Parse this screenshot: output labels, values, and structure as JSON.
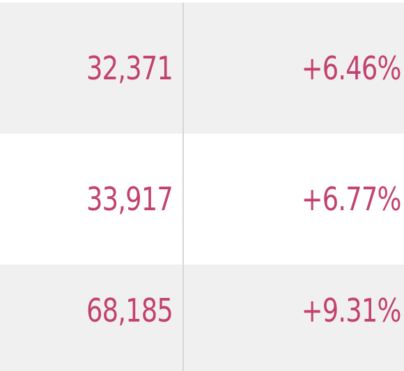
{
  "table": {
    "rows": [
      {
        "value": "32,371",
        "change": "+6.46%"
      },
      {
        "value": "33,917",
        "change": "+6.77%"
      },
      {
        "value": "68,185",
        "change": "+9.31%"
      }
    ]
  },
  "colors": {
    "text": "#c2426f",
    "row_alt": "#f1f0f0",
    "row": "#ffffff",
    "divider": "#d6d6d6"
  }
}
